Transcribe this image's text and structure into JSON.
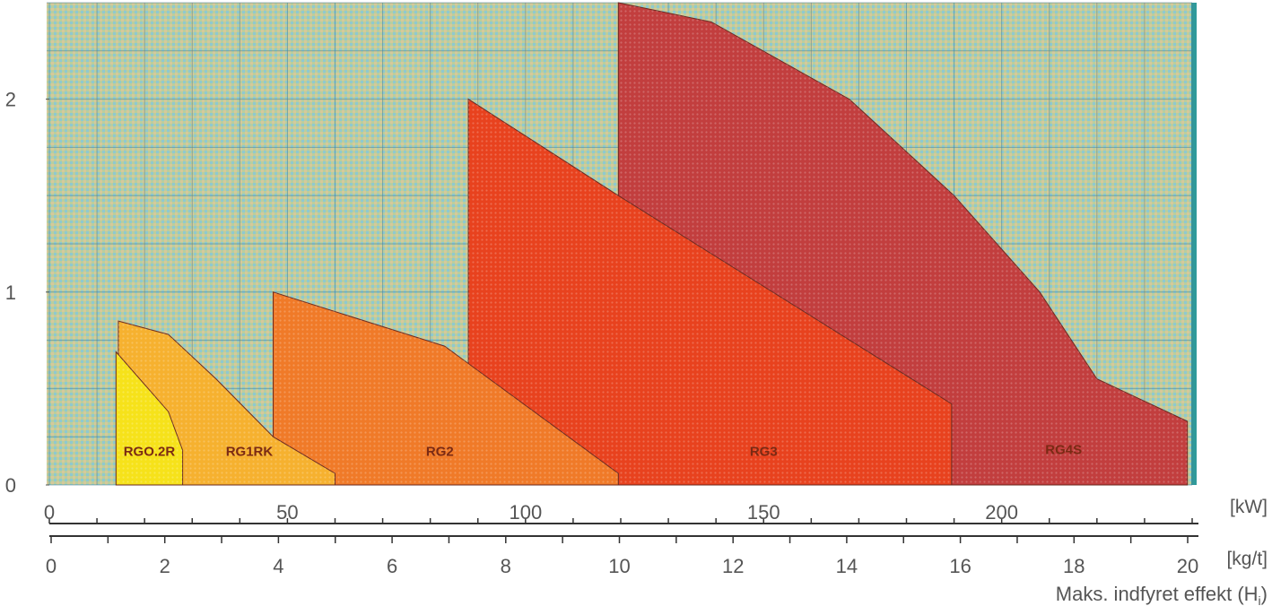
{
  "chart_data": {
    "type": "area",
    "title": "",
    "xlabel": "Maks. indfyret effekt (H",
    "xlabel_sub": "i",
    "xlabel_close": ")",
    "ylim": [
      0,
      2.5
    ],
    "y_ticks": [
      "0",
      "1",
      "2"
    ],
    "x_axis_kw": {
      "unit": "[kW]",
      "range": [
        0,
        240
      ],
      "ticks": [
        "0",
        "50",
        "100",
        "150",
        "200"
      ],
      "tick_values": [
        0,
        50,
        100,
        150,
        200
      ]
    },
    "x_axis_kgt": {
      "unit": "[kg/t]",
      "range": [
        0,
        20
      ],
      "ticks": [
        "0",
        "2",
        "4",
        "6",
        "8",
        "10",
        "12",
        "14",
        "16",
        "18",
        "20"
      ],
      "tick_values": [
        0,
        2,
        4,
        6,
        8,
        10,
        12,
        14,
        16,
        18,
        20
      ]
    },
    "grid": true,
    "series": [
      {
        "name": "RG4S",
        "color": "#c23e3e",
        "points": [
          [
            119.5,
            0
          ],
          [
            119.5,
            2.5
          ],
          [
            139,
            2.4
          ],
          [
            168,
            2.0
          ],
          [
            190,
            1.5
          ],
          [
            208,
            1.0
          ],
          [
            220,
            0.55
          ],
          [
            239,
            0.33
          ],
          [
            239,
            0
          ]
        ]
      },
      {
        "name": "RG3",
        "color": "#e8421e",
        "points": [
          [
            88,
            0
          ],
          [
            88,
            2.0
          ],
          [
            119.5,
            1.5
          ],
          [
            189.5,
            0.42
          ],
          [
            189.5,
            0
          ]
        ]
      },
      {
        "name": "RG2",
        "color": "#f07a28",
        "points": [
          [
            47,
            0
          ],
          [
            47,
            1.0
          ],
          [
            83,
            0.72
          ],
          [
            119.5,
            0.06
          ],
          [
            119.5,
            0
          ]
        ]
      },
      {
        "name": "RG1RK",
        "color": "#f6b12f",
        "points": [
          [
            14.5,
            0
          ],
          [
            14.5,
            0.85
          ],
          [
            25,
            0.78
          ],
          [
            35,
            0.55
          ],
          [
            47,
            0.25
          ],
          [
            60,
            0.06
          ],
          [
            60,
            0
          ]
        ]
      },
      {
        "name": "RGO.2R",
        "color": "#f6e21a",
        "points": [
          [
            14,
            0
          ],
          [
            14,
            0.69
          ],
          [
            25,
            0.38
          ],
          [
            28,
            0.18
          ],
          [
            28,
            0
          ]
        ]
      }
    ],
    "labels": [
      {
        "text": "RGO.2R",
        "x": 21,
        "y": 0.15
      },
      {
        "text": "RG1RK",
        "x": 42,
        "y": 0.15
      },
      {
        "text": "RG2",
        "x": 82,
        "y": 0.15
      },
      {
        "text": "RG3",
        "x": 150,
        "y": 0.15
      },
      {
        "text": "RG4S",
        "x": 213,
        "y": 0.16
      }
    ]
  }
}
